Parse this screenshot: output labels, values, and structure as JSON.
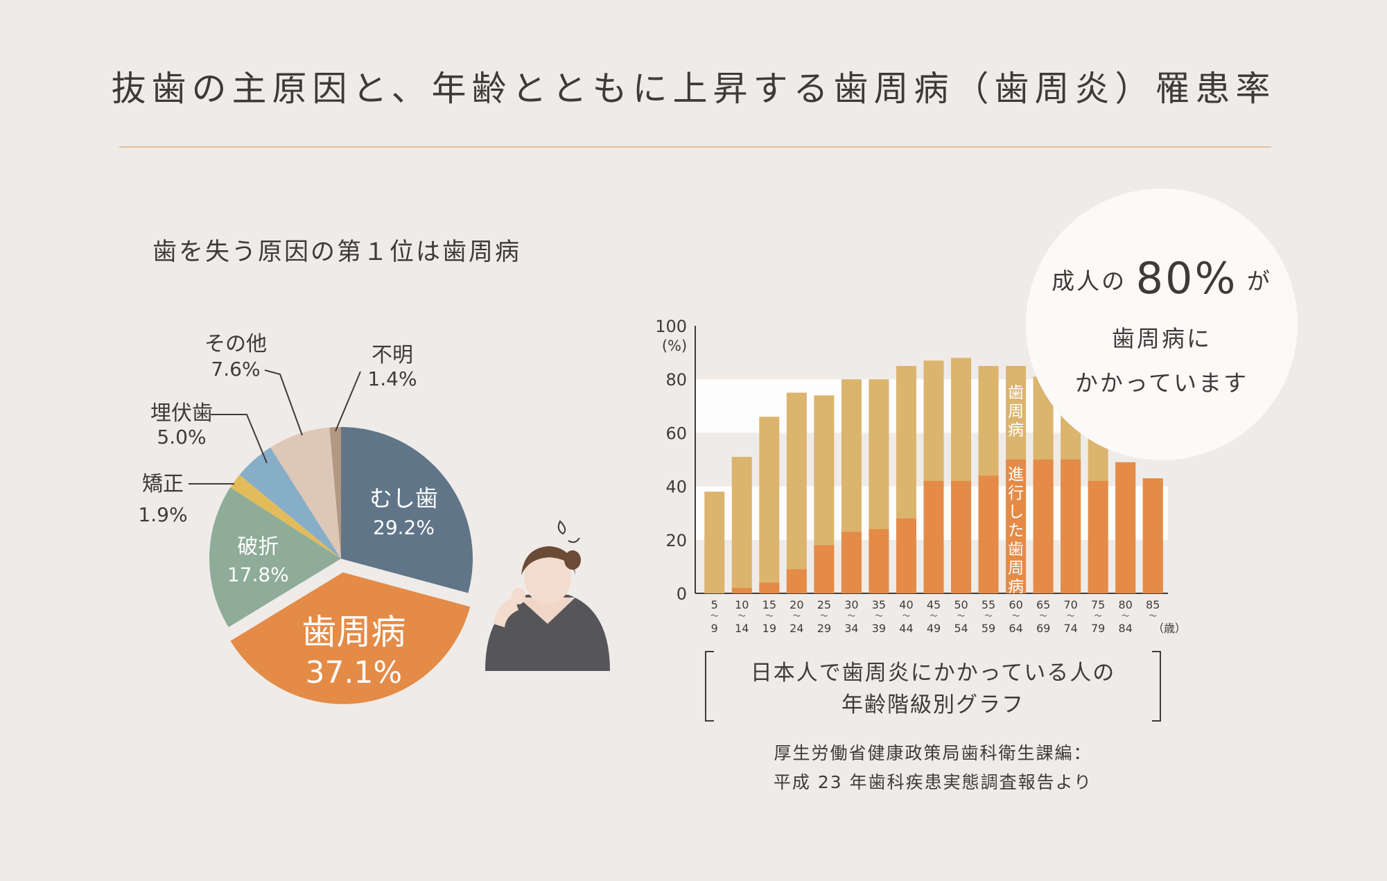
{
  "title": "抜歯の主原因と、年齢とともに上昇する歯周病（歯周炎）罹患率",
  "colors": {
    "background": "#efebe8",
    "rule": "#dcc396",
    "text": "#3e3a39",
    "periodontal": "#e48b47",
    "bar_total": "#dbb46d",
    "bar_advanced": "#e48b47"
  },
  "chart_data": [
    {
      "type": "pie",
      "title": "歯を失う原因の第１位は歯周病",
      "slices": [
        {
          "label": "むし歯",
          "value": 29.2,
          "value_label": "29.2%",
          "color": "#607588"
        },
        {
          "label": "歯周病",
          "value": 37.1,
          "value_label": "37.1%",
          "color": "#e48b47",
          "exploded": true
        },
        {
          "label": "破折",
          "value": 17.8,
          "value_label": "17.8%",
          "color": "#8eac98"
        },
        {
          "label": "矯正",
          "value": 1.9,
          "value_label": "1.9%",
          "color": "#e2bb5a"
        },
        {
          "label": "埋伏歯",
          "value": 5.0,
          "value_label": "5.0%",
          "color": "#87aec8"
        },
        {
          "label": "その他",
          "value": 7.6,
          "value_label": "7.6%",
          "color": "#ddc7b6"
        },
        {
          "label": "不明",
          "value": 1.4,
          "value_label": "1.4%",
          "color": "#b29883"
        }
      ]
    },
    {
      "type": "bar",
      "title": "日本人で歯周炎にかかっている人の\n年齢階級別グラフ",
      "ylabel": "(%)",
      "xlabel": "（歳）",
      "ylim": [
        0,
        100
      ],
      "yticks": [
        0,
        20,
        40,
        60,
        80,
        100
      ],
      "categories": [
        {
          "top": "5",
          "bottom": "9"
        },
        {
          "top": "10",
          "bottom": "14"
        },
        {
          "top": "15",
          "bottom": "19"
        },
        {
          "top": "20",
          "bottom": "24"
        },
        {
          "top": "25",
          "bottom": "29"
        },
        {
          "top": "30",
          "bottom": "34"
        },
        {
          "top": "35",
          "bottom": "39"
        },
        {
          "top": "40",
          "bottom": "44"
        },
        {
          "top": "45",
          "bottom": "49"
        },
        {
          "top": "50",
          "bottom": "54"
        },
        {
          "top": "55",
          "bottom": "59"
        },
        {
          "top": "60",
          "bottom": "64"
        },
        {
          "top": "65",
          "bottom": "69"
        },
        {
          "top": "70",
          "bottom": "74"
        },
        {
          "top": "75",
          "bottom": "79"
        },
        {
          "top": "80",
          "bottom": "84"
        },
        {
          "top": "85",
          "bottom": ""
        }
      ],
      "range_mark": "～",
      "series": [
        {
          "name": "歯周病",
          "values": [
            38,
            51,
            66,
            75,
            74,
            80,
            80,
            85,
            87,
            88,
            85,
            85,
            81,
            73,
            59,
            49,
            43
          ]
        },
        {
          "name": "進行した歯周病",
          "values": [
            0,
            2,
            4,
            9,
            18,
            23,
            24,
            28,
            42,
            42,
            44,
            50,
            50,
            50,
            42,
            49,
            43
          ]
        }
      ]
    }
  ],
  "callout": {
    "prefix": "成人の",
    "highlight": "80%",
    "suffix": "が",
    "line2": "歯周病に",
    "line3": "かかっています"
  },
  "caption": {
    "line1": "日本人で歯周炎にかかっている人の",
    "line2": "年齢階級別グラフ"
  },
  "source": {
    "line1": "厚生労働省健康政策局歯科衛生課編：",
    "line2": "平成 23 年歯科疾患実態調査報告より"
  }
}
